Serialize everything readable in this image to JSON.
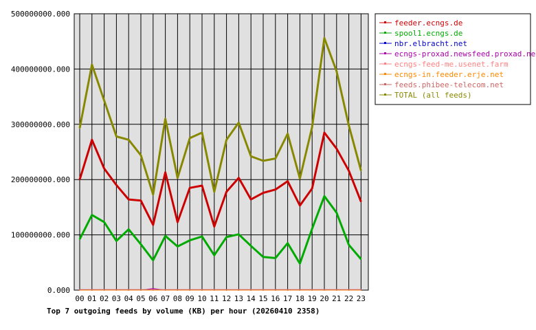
{
  "chart_data": {
    "type": "line",
    "title": "Top 7 outgoing feeds by volume (KB) per hour (20260410 2358)",
    "xlabel": "",
    "ylabel": "",
    "categories": [
      "00",
      "01",
      "02",
      "03",
      "04",
      "05",
      "06",
      "07",
      "08",
      "09",
      "10",
      "11",
      "12",
      "13",
      "14",
      "15",
      "16",
      "17",
      "18",
      "19",
      "20",
      "21",
      "22",
      "23"
    ],
    "ylim": [
      0,
      500000000
    ],
    "yticks": [
      "0.000",
      "100000000.000",
      "200000000.000",
      "300000000.000",
      "400000000.000",
      "500000000.000"
    ],
    "grid": true,
    "legend_position": "right",
    "series": [
      {
        "name": "feeder.ecngs.de",
        "color": "#cc0000",
        "width": 3,
        "values": [
          200000000,
          272000000,
          220000000,
          190000000,
          164000000,
          162000000,
          118000000,
          213000000,
          123000000,
          185000000,
          189000000,
          115000000,
          178000000,
          203000000,
          164000000,
          176000000,
          182000000,
          197000000,
          153000000,
          184000000,
          285000000,
          256000000,
          216000000,
          160000000
        ]
      },
      {
        "name": "spool1.ecngs.de",
        "color": "#00aa00",
        "width": 3,
        "values": [
          92000000,
          136000000,
          123000000,
          89000000,
          110000000,
          83000000,
          54000000,
          98000000,
          79000000,
          90000000,
          97000000,
          63000000,
          96000000,
          101000000,
          80000000,
          60000000,
          58000000,
          85000000,
          48000000,
          111000000,
          170000000,
          140000000,
          82000000,
          56000000
        ]
      },
      {
        "name": "nbr.elbracht.net",
        "color": "#0000cc",
        "width": 1,
        "values": [
          0,
          0,
          0,
          0,
          0,
          0,
          0,
          0,
          0,
          0,
          0,
          0,
          0,
          0,
          0,
          0,
          0,
          0,
          0,
          0,
          0,
          0,
          0,
          0
        ]
      },
      {
        "name": "ecngs-proxad.newsfeed.proxad.net",
        "color": "#aa00aa",
        "width": 1,
        "values": [
          0,
          0,
          0,
          0,
          0,
          0,
          3000000,
          0,
          0,
          0,
          0,
          0,
          0,
          0,
          0,
          0,
          0,
          0,
          0,
          0,
          0,
          0,
          0,
          0
        ]
      },
      {
        "name": "ecngs-feed-me.usenet.farm",
        "color": "#ff8080",
        "width": 1,
        "values": [
          1000000,
          1000000,
          1000000,
          1000000,
          1000000,
          1000000,
          1000000,
          1000000,
          1000000,
          1000000,
          1000000,
          1000000,
          1000000,
          1000000,
          1000000,
          1000000,
          1000000,
          1000000,
          1000000,
          1000000,
          1000000,
          1000000,
          1000000,
          1000000
        ]
      },
      {
        "name": "ecngs-in.feeder.erje.net",
        "color": "#ff8800",
        "width": 1,
        "values": [
          0,
          0,
          0,
          0,
          0,
          0,
          0,
          0,
          0,
          0,
          0,
          0,
          0,
          0,
          0,
          0,
          0,
          0,
          0,
          0,
          0,
          0,
          0,
          0
        ]
      },
      {
        "name": "feeds.phibee-telecom.net",
        "color": "#cc6666",
        "width": 1,
        "values": [
          1000000,
          1000000,
          1000000,
          1000000,
          1000000,
          1000000,
          1000000,
          1000000,
          1000000,
          1000000,
          1000000,
          1000000,
          1000000,
          1000000,
          1000000,
          1000000,
          1000000,
          1000000,
          1000000,
          1000000,
          1000000,
          1000000,
          1000000,
          1000000
        ]
      },
      {
        "name": "TOTAL (all feeds)",
        "color": "#888800",
        "width": 3,
        "values": [
          293000000,
          408000000,
          343000000,
          278000000,
          272000000,
          244000000,
          173000000,
          310000000,
          203000000,
          275000000,
          285000000,
          178000000,
          272000000,
          303000000,
          242000000,
          234000000,
          238000000,
          283000000,
          202000000,
          295000000,
          456000000,
          396000000,
          298000000,
          216000000
        ]
      }
    ]
  },
  "colors": {
    "plot_background": "#e0e0e0",
    "grid": "#000000",
    "axis": "#000000"
  }
}
